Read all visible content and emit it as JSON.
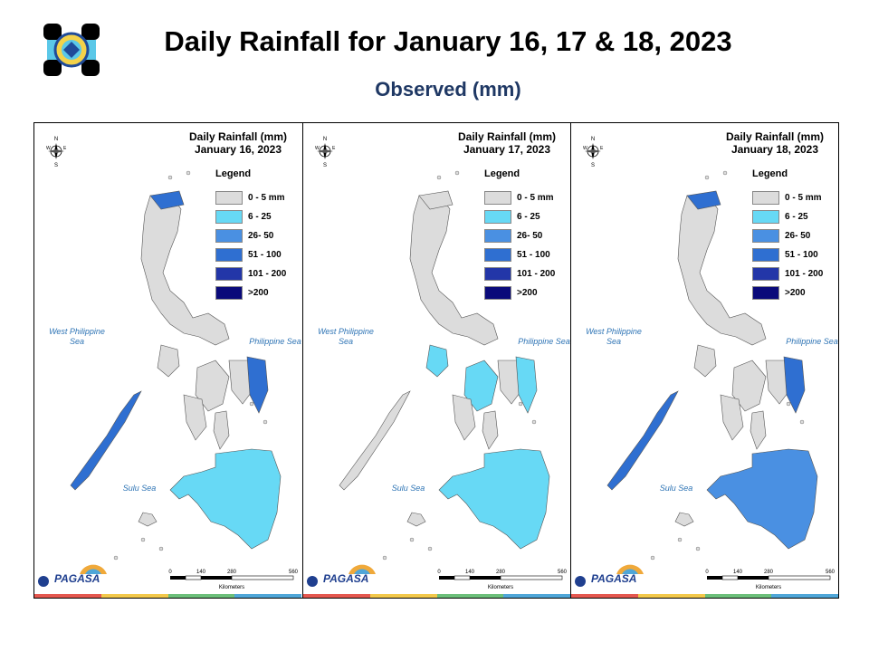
{
  "header": {
    "title": "Daily Rainfall for January 16, 17 & 18, 2023",
    "subtitle": "Observed (mm)"
  },
  "legend": {
    "title": "Legend",
    "classes": [
      {
        "label": "0 - 5 mm",
        "color": "#dcdcdc"
      },
      {
        "label": "6 - 25",
        "color": "#67d9f5"
      },
      {
        "label": "26- 50",
        "color": "#4a90e2"
      },
      {
        "label": "51 - 100",
        "color": "#2f6fd1"
      },
      {
        "label": "101 - 200",
        "color": "#2336a8"
      },
      {
        "label": ">200",
        "color": "#0a0a7a"
      }
    ]
  },
  "panels": [
    {
      "title_line1": "Daily Rainfall (mm)",
      "title_line2": "January 16, 2023",
      "rain_class": "high"
    },
    {
      "title_line1": "Daily Rainfall (mm)",
      "title_line2": "January 17, 2023",
      "rain_class": "medium"
    },
    {
      "title_line1": "Daily Rainfall (mm)",
      "title_line2": "January 18, 2023",
      "rain_class": "high"
    }
  ],
  "labels": {
    "west_sea": "West Philippine Sea",
    "phil_sea": "Philippine Sea",
    "sulu_sea": "Sulu Sea",
    "scale_ticks": [
      "0",
      "140",
      "280",
      "560"
    ],
    "scale_unit": "Kilometers",
    "compass_n": "N",
    "compass_s": "S",
    "compass_e": "E",
    "compass_w": "W",
    "agency": "PAGASA"
  },
  "stripe_colors": [
    "#e4574f",
    "#f2c84b",
    "#6cbf7a",
    "#4fa6d8"
  ]
}
